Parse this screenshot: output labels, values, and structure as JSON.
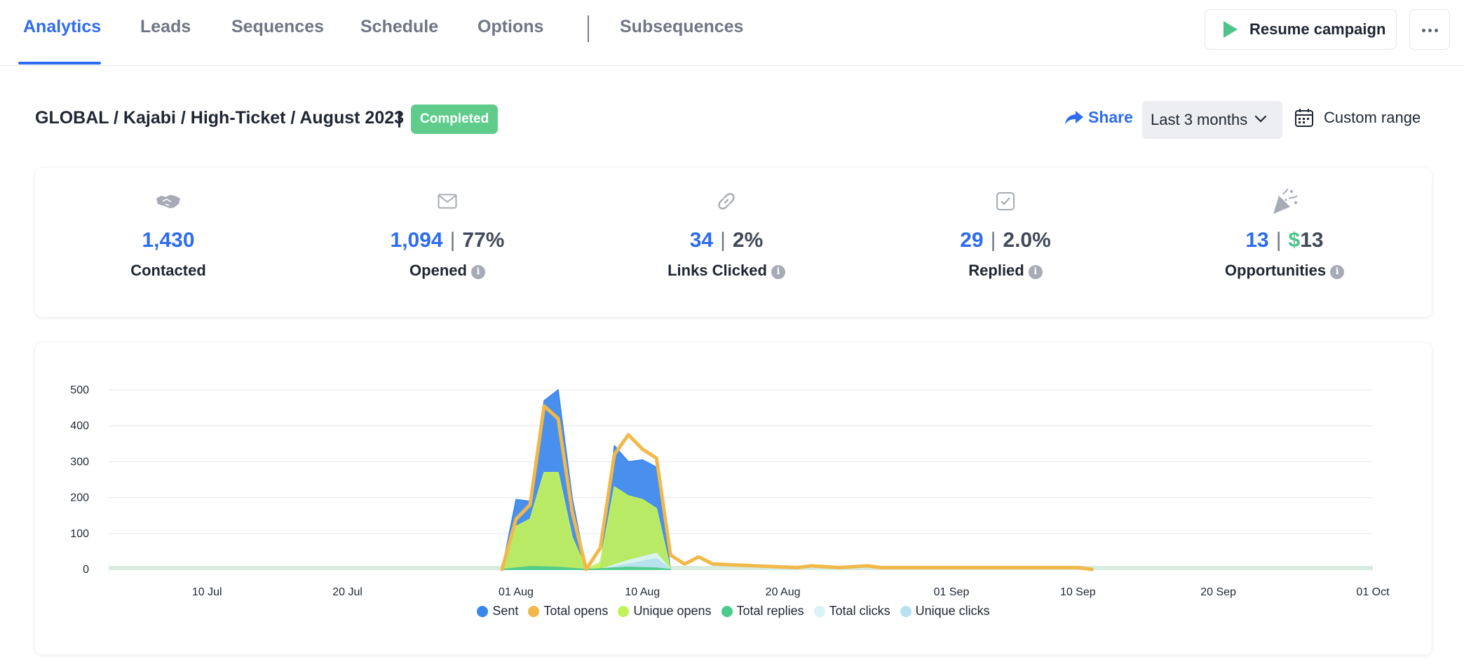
{
  "nav": {
    "tabs": [
      {
        "label": "Analytics",
        "active": true
      },
      {
        "label": "Leads"
      },
      {
        "label": "Sequences"
      },
      {
        "label": "Schedule"
      },
      {
        "label": "Options"
      },
      {
        "label": "Subsequences"
      }
    ],
    "resume_label": "Resume campaign",
    "more_icon": "ellipsis-icon"
  },
  "header": {
    "campaign_path": "GLOBAL / Kajabi / High-Ticket / August 2023",
    "separator": "|",
    "status": "Completed",
    "share_label": "Share",
    "range_value": "Last 3 months",
    "custom_range_label": "Custom range"
  },
  "stats": [
    {
      "icon": "handshake-icon",
      "value": "1,430",
      "secondary": "",
      "label": "Contacted",
      "info": false
    },
    {
      "icon": "envelope-icon",
      "value": "1,094",
      "secondary": "77%",
      "label": "Opened",
      "info": true
    },
    {
      "icon": "link-icon",
      "value": "34",
      "secondary": "2%",
      "label": "Links Clicked",
      "info": true
    },
    {
      "icon": "checkbox-icon",
      "value": "29",
      "secondary": "2.0%",
      "label": "Replied",
      "info": true
    },
    {
      "icon": "party-popper-icon",
      "value": "13",
      "secondary_currency": "$",
      "secondary": "13",
      "label": "Opportunities",
      "info": true
    }
  ],
  "colors": {
    "accent": "#2e6cf0",
    "status_green": "#5fcc8c",
    "sent": "#3a86ec",
    "total_opens": "#f1b84a",
    "unique_opens": "#c2f25a",
    "total_replies": "#4ccc8a",
    "total_clicks": "#d9f3f7",
    "unique_clicks": "#b6e1ee"
  },
  "chart_data": {
    "type": "area",
    "title": "",
    "xlabel": "",
    "ylabel": "",
    "ylim": [
      0,
      500
    ],
    "yticks": [
      0,
      100,
      200,
      300,
      400,
      500
    ],
    "xlim": [
      "2023-07-03",
      "2023-10-01"
    ],
    "xticks": [
      {
        "date": "2023-07-10",
        "label": "10 Jul"
      },
      {
        "date": "2023-07-20",
        "label": "20 Jul"
      },
      {
        "date": "2023-08-01",
        "label": "01 Aug"
      },
      {
        "date": "2023-08-10",
        "label": "10 Aug"
      },
      {
        "date": "2023-08-20",
        "label": "20 Aug"
      },
      {
        "date": "2023-09-01",
        "label": "01 Sep"
      },
      {
        "date": "2023-09-10",
        "label": "10 Sep"
      },
      {
        "date": "2023-09-20",
        "label": "20 Sep"
      },
      {
        "date": "2023-10-01",
        "label": "01 Oct"
      }
    ],
    "grid": true,
    "legend_position": "bottom",
    "series": [
      {
        "name": "Sent",
        "color": "#3a86ec",
        "points": [
          [
            "2023-07-31",
            0
          ],
          [
            "2023-08-01",
            195
          ],
          [
            "2023-08-02",
            190
          ],
          [
            "2023-08-03",
            470
          ],
          [
            "2023-08-04",
            500
          ],
          [
            "2023-08-05",
            200
          ],
          [
            "2023-08-06",
            0
          ],
          [
            "2023-08-07",
            0
          ],
          [
            "2023-08-08",
            345
          ],
          [
            "2023-08-09",
            300
          ],
          [
            "2023-08-10",
            305
          ],
          [
            "2023-08-11",
            285
          ],
          [
            "2023-08-12",
            0
          ]
        ]
      },
      {
        "name": "Total opens",
        "color": "#f1b84a",
        "points": [
          [
            "2023-07-31",
            0
          ],
          [
            "2023-08-01",
            140
          ],
          [
            "2023-08-02",
            180
          ],
          [
            "2023-08-03",
            455
          ],
          [
            "2023-08-04",
            420
          ],
          [
            "2023-08-05",
            160
          ],
          [
            "2023-08-06",
            0
          ],
          [
            "2023-08-07",
            60
          ],
          [
            "2023-08-08",
            320
          ],
          [
            "2023-08-09",
            375
          ],
          [
            "2023-08-10",
            335
          ],
          [
            "2023-08-11",
            310
          ],
          [
            "2023-08-12",
            40
          ],
          [
            "2023-08-13",
            15
          ],
          [
            "2023-08-14",
            35
          ],
          [
            "2023-08-15",
            15
          ],
          [
            "2023-08-18",
            10
          ],
          [
            "2023-08-21",
            5
          ],
          [
            "2023-08-22",
            10
          ],
          [
            "2023-08-24",
            5
          ],
          [
            "2023-08-26",
            10
          ],
          [
            "2023-08-27",
            5
          ],
          [
            "2023-08-30",
            5
          ],
          [
            "2023-09-05",
            5
          ],
          [
            "2023-09-10",
            5
          ],
          [
            "2023-09-11",
            0
          ]
        ]
      },
      {
        "name": "Unique opens",
        "color": "#c2f25a",
        "points": [
          [
            "2023-07-31",
            0
          ],
          [
            "2023-08-01",
            120
          ],
          [
            "2023-08-02",
            140
          ],
          [
            "2023-08-03",
            270
          ],
          [
            "2023-08-04",
            270
          ],
          [
            "2023-08-05",
            90
          ],
          [
            "2023-08-06",
            0
          ],
          [
            "2023-08-07",
            20
          ],
          [
            "2023-08-08",
            230
          ],
          [
            "2023-08-09",
            205
          ],
          [
            "2023-08-10",
            195
          ],
          [
            "2023-08-11",
            170
          ],
          [
            "2023-08-12",
            0
          ]
        ]
      },
      {
        "name": "Total replies",
        "color": "#4ccc8a",
        "points": [
          [
            "2023-07-31",
            0
          ],
          [
            "2023-08-02",
            8
          ],
          [
            "2023-08-04",
            6
          ],
          [
            "2023-08-06",
            0
          ],
          [
            "2023-08-09",
            6
          ],
          [
            "2023-08-11",
            4
          ],
          [
            "2023-08-12",
            0
          ]
        ]
      },
      {
        "name": "Total clicks",
        "color": "#d9f3f7",
        "points": [
          [
            "2023-08-07",
            0
          ],
          [
            "2023-08-09",
            25
          ],
          [
            "2023-08-11",
            45
          ],
          [
            "2023-08-12",
            0
          ]
        ]
      },
      {
        "name": "Unique clicks",
        "color": "#b6e1ee",
        "points": [
          [
            "2023-08-07",
            0
          ],
          [
            "2023-08-09",
            15
          ],
          [
            "2023-08-11",
            30
          ],
          [
            "2023-08-12",
            0
          ]
        ]
      }
    ]
  }
}
